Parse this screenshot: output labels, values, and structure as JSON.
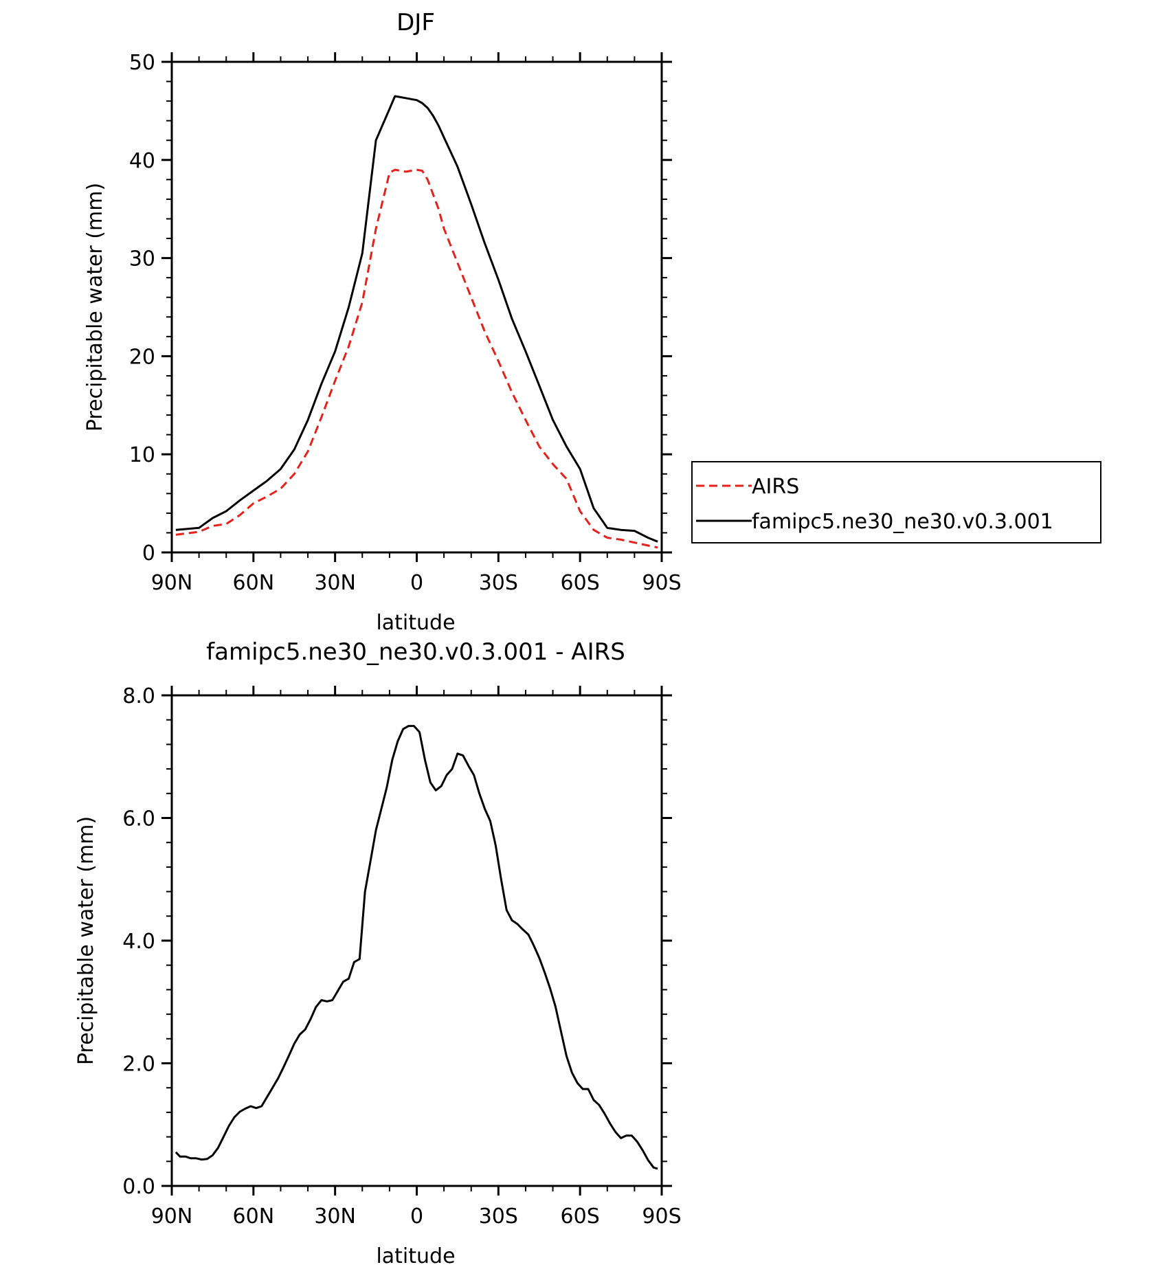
{
  "chart_data": [
    {
      "type": "line",
      "title": "DJF",
      "xlabel": "latitude",
      "ylabel": "Precipitable water (mm)",
      "xlim": [
        90,
        -90
      ],
      "ylim": [
        0,
        50
      ],
      "yticks": [
        0,
        10,
        20,
        30,
        40,
        50
      ],
      "ytick_labels": [
        "0",
        "10",
        "20",
        "30",
        "40",
        "50"
      ],
      "xticks": [
        90,
        60,
        30,
        0,
        -30,
        -60,
        -90
      ],
      "xtick_labels": [
        "90N",
        "60N",
        "30N",
        "0",
        "30S",
        "60S",
        "90S"
      ],
      "legend_position": "right",
      "grid": false,
      "series": [
        {
          "name": "AIRS",
          "color": "#e8201a",
          "style": "dashed",
          "x": [
            88.5,
            80,
            75,
            70,
            65,
            60,
            55,
            50,
            45,
            40,
            35,
            30,
            25,
            20,
            15,
            10,
            8,
            6,
            4,
            2,
            0,
            -2,
            -4,
            -6,
            -8,
            -10,
            -15,
            -20,
            -25,
            -30,
            -35,
            -40,
            -45,
            -50,
            -55,
            -60,
            -65,
            -70,
            -75,
            -80,
            -85,
            -88.5
          ],
          "y": [
            1.8,
            2.1,
            2.7,
            2.9,
            3.8,
            5.0,
            5.7,
            6.5,
            8.0,
            10.3,
            13.8,
            17.5,
            21.0,
            25.5,
            33.0,
            38.7,
            39.0,
            38.9,
            38.8,
            38.9,
            39.0,
            38.9,
            38.0,
            36.5,
            35.0,
            33.0,
            29.5,
            26.0,
            22.5,
            19.5,
            16.3,
            13.5,
            10.8,
            9.0,
            7.5,
            4.2,
            2.3,
            1.5,
            1.3,
            1.0,
            0.7,
            0.5
          ]
        },
        {
          "name": "famipc5.ne30_ne30.v0.3.001",
          "color": "#000000",
          "style": "solid",
          "x": [
            88.5,
            80,
            75,
            70,
            65,
            60,
            55,
            50,
            45,
            40,
            35,
            30,
            25,
            20,
            15,
            10,
            8,
            6,
            4,
            2,
            0,
            -2,
            -4,
            -6,
            -8,
            -10,
            -15,
            -20,
            -25,
            -30,
            -35,
            -40,
            -45,
            -50,
            -55,
            -60,
            -65,
            -70,
            -75,
            -80,
            -85,
            -88.5
          ],
          "y": [
            2.3,
            2.5,
            3.5,
            4.2,
            5.3,
            6.3,
            7.3,
            8.5,
            10.5,
            13.5,
            17.2,
            20.5,
            25.0,
            30.5,
            42.0,
            45.2,
            46.5,
            46.4,
            46.3,
            46.2,
            46.1,
            45.8,
            45.3,
            44.5,
            43.5,
            42.3,
            39.3,
            35.5,
            31.5,
            27.8,
            23.8,
            20.5,
            17.0,
            13.5,
            10.8,
            8.5,
            4.5,
            2.5,
            2.3,
            2.2,
            1.5,
            1.1
          ]
        }
      ]
    },
    {
      "type": "line",
      "title": "famipc5.ne30_ne30.v0.3.001 - AIRS",
      "xlabel": "latitude",
      "ylabel": "Precipitable water (mm)",
      "xlim": [
        90,
        -90
      ],
      "ylim": [
        0,
        8
      ],
      "yticks": [
        0,
        2,
        4,
        6,
        8
      ],
      "ytick_labels": [
        "0.0",
        "2.0",
        "4.0",
        "6.0",
        "8.0"
      ],
      "xticks": [
        90,
        60,
        30,
        0,
        -30,
        -60,
        -90
      ],
      "xtick_labels": [
        "90N",
        "60N",
        "30N",
        "0",
        "30S",
        "60S",
        "90S"
      ],
      "grid": false,
      "series": [
        {
          "color": "#000000",
          "style": "solid",
          "x": [
            88.5,
            87,
            85,
            83,
            81,
            79,
            77,
            75,
            73,
            71,
            69,
            67,
            65,
            63,
            61,
            59,
            57,
            55,
            53,
            51,
            49,
            47,
            45,
            43,
            41,
            39,
            37,
            35,
            33,
            31,
            29,
            27,
            25,
            23,
            21,
            19,
            17,
            15,
            13,
            11,
            9,
            7,
            5,
            3,
            1,
            -1,
            -3,
            -5,
            -7,
            -9,
            -11,
            -13,
            -15,
            -17,
            -19,
            -21,
            -23,
            -25,
            -27,
            -29,
            -31,
            -33,
            -35,
            -37,
            -39,
            -41,
            -43,
            -45,
            -47,
            -49,
            -51,
            -53,
            -55,
            -57,
            -59,
            -61,
            -63,
            -65,
            -67,
            -69,
            -71,
            -73,
            -75,
            -77,
            -79,
            -81,
            -83,
            -85,
            -87,
            -88.5
          ],
          "y": [
            0.55,
            0.48,
            0.48,
            0.45,
            0.45,
            0.43,
            0.44,
            0.5,
            0.62,
            0.8,
            0.98,
            1.12,
            1.21,
            1.26,
            1.3,
            1.27,
            1.3,
            1.45,
            1.6,
            1.75,
            1.93,
            2.12,
            2.32,
            2.47,
            2.55,
            2.72,
            2.92,
            3.03,
            3.01,
            3.03,
            3.18,
            3.33,
            3.38,
            3.65,
            3.7,
            4.8,
            5.3,
            5.8,
            6.15,
            6.5,
            6.95,
            7.25,
            7.45,
            7.5,
            7.5,
            7.4,
            6.95,
            6.58,
            6.45,
            6.52,
            6.7,
            6.8,
            7.05,
            7.02,
            6.85,
            6.7,
            6.4,
            6.15,
            5.95,
            5.55,
            5.0,
            4.5,
            4.33,
            4.27,
            4.18,
            4.1,
            3.92,
            3.72,
            3.48,
            3.22,
            2.92,
            2.52,
            2.12,
            1.85,
            1.68,
            1.58,
            1.58,
            1.4,
            1.32,
            1.18,
            1.02,
            0.88,
            0.78,
            0.82,
            0.82,
            0.72,
            0.58,
            0.42,
            0.3,
            0.28
          ]
        }
      ]
    }
  ]
}
